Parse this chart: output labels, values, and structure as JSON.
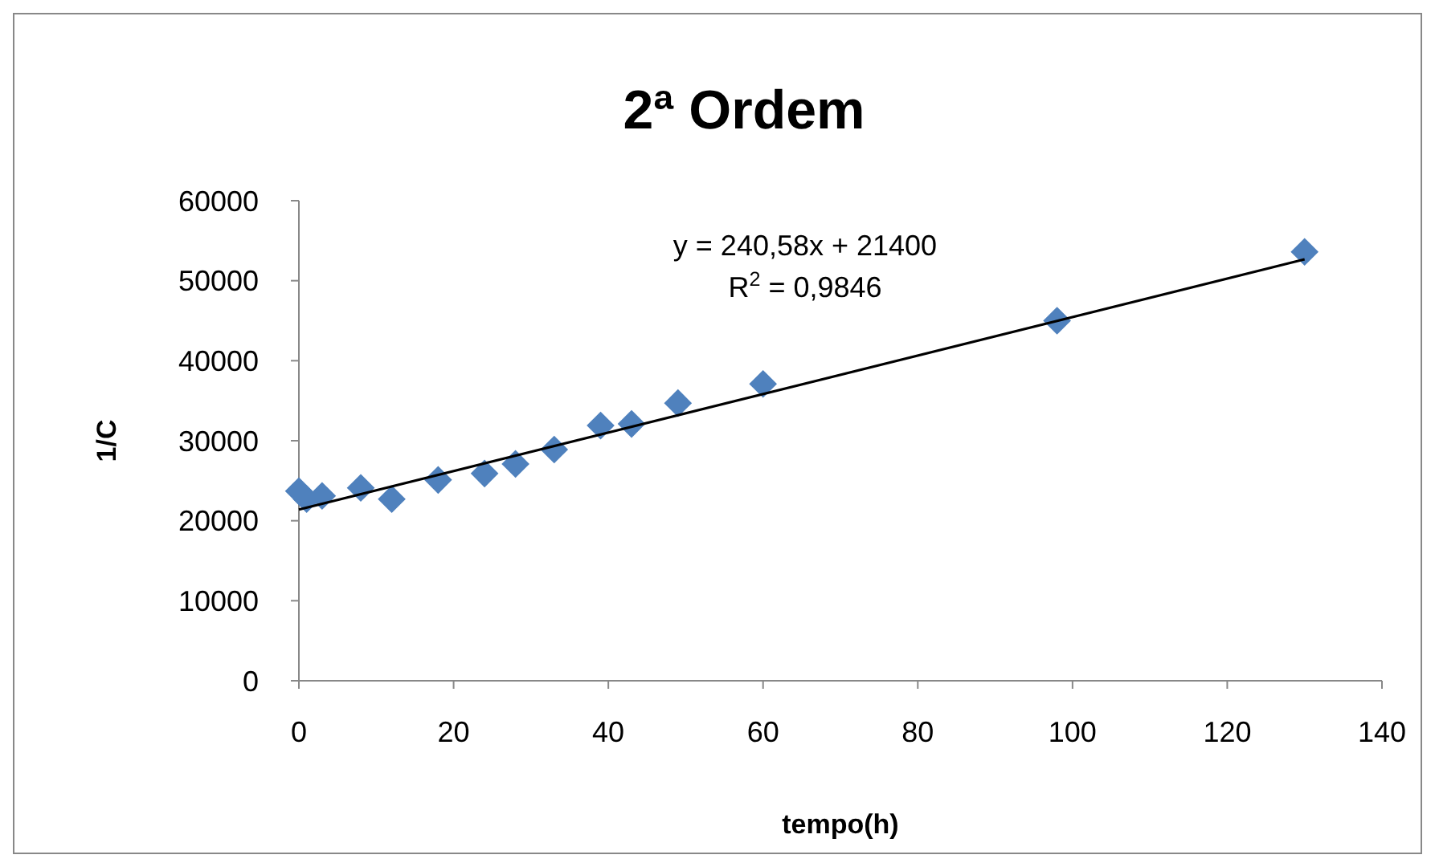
{
  "chart_data": {
    "type": "scatter",
    "title": "2ª Ordem",
    "xlabel": "tempo(h)",
    "ylabel": "1/C",
    "xlim": [
      0,
      140
    ],
    "xticks": [
      0,
      20,
      40,
      60,
      80,
      100,
      120,
      140
    ],
    "ylim": [
      0,
      60000
    ],
    "yticks": [
      0,
      10000,
      20000,
      30000,
      40000,
      50000,
      60000
    ],
    "grid": false,
    "marker": "diamond",
    "series": [
      {
        "color": "#4f81bd",
        "x": [
          0,
          1,
          3,
          8,
          12,
          18,
          24,
          28,
          33,
          39,
          43,
          49,
          60,
          98,
          130
        ],
        "values": [
          23700,
          22700,
          23100,
          24100,
          22700,
          25100,
          25900,
          27100,
          28900,
          31900,
          32100,
          34700,
          37100,
          45000,
          53600
        ]
      },
      {
        "type": "line",
        "color": "#000000",
        "x": [
          0,
          130
        ],
        "values": [
          21400,
          52675
        ],
        "marker": "none",
        "line_style": "solid"
      }
    ],
    "annotations": [
      "y = 240,58x + 21400",
      "R$^{2}$ = 0,9846"
    ]
  }
}
